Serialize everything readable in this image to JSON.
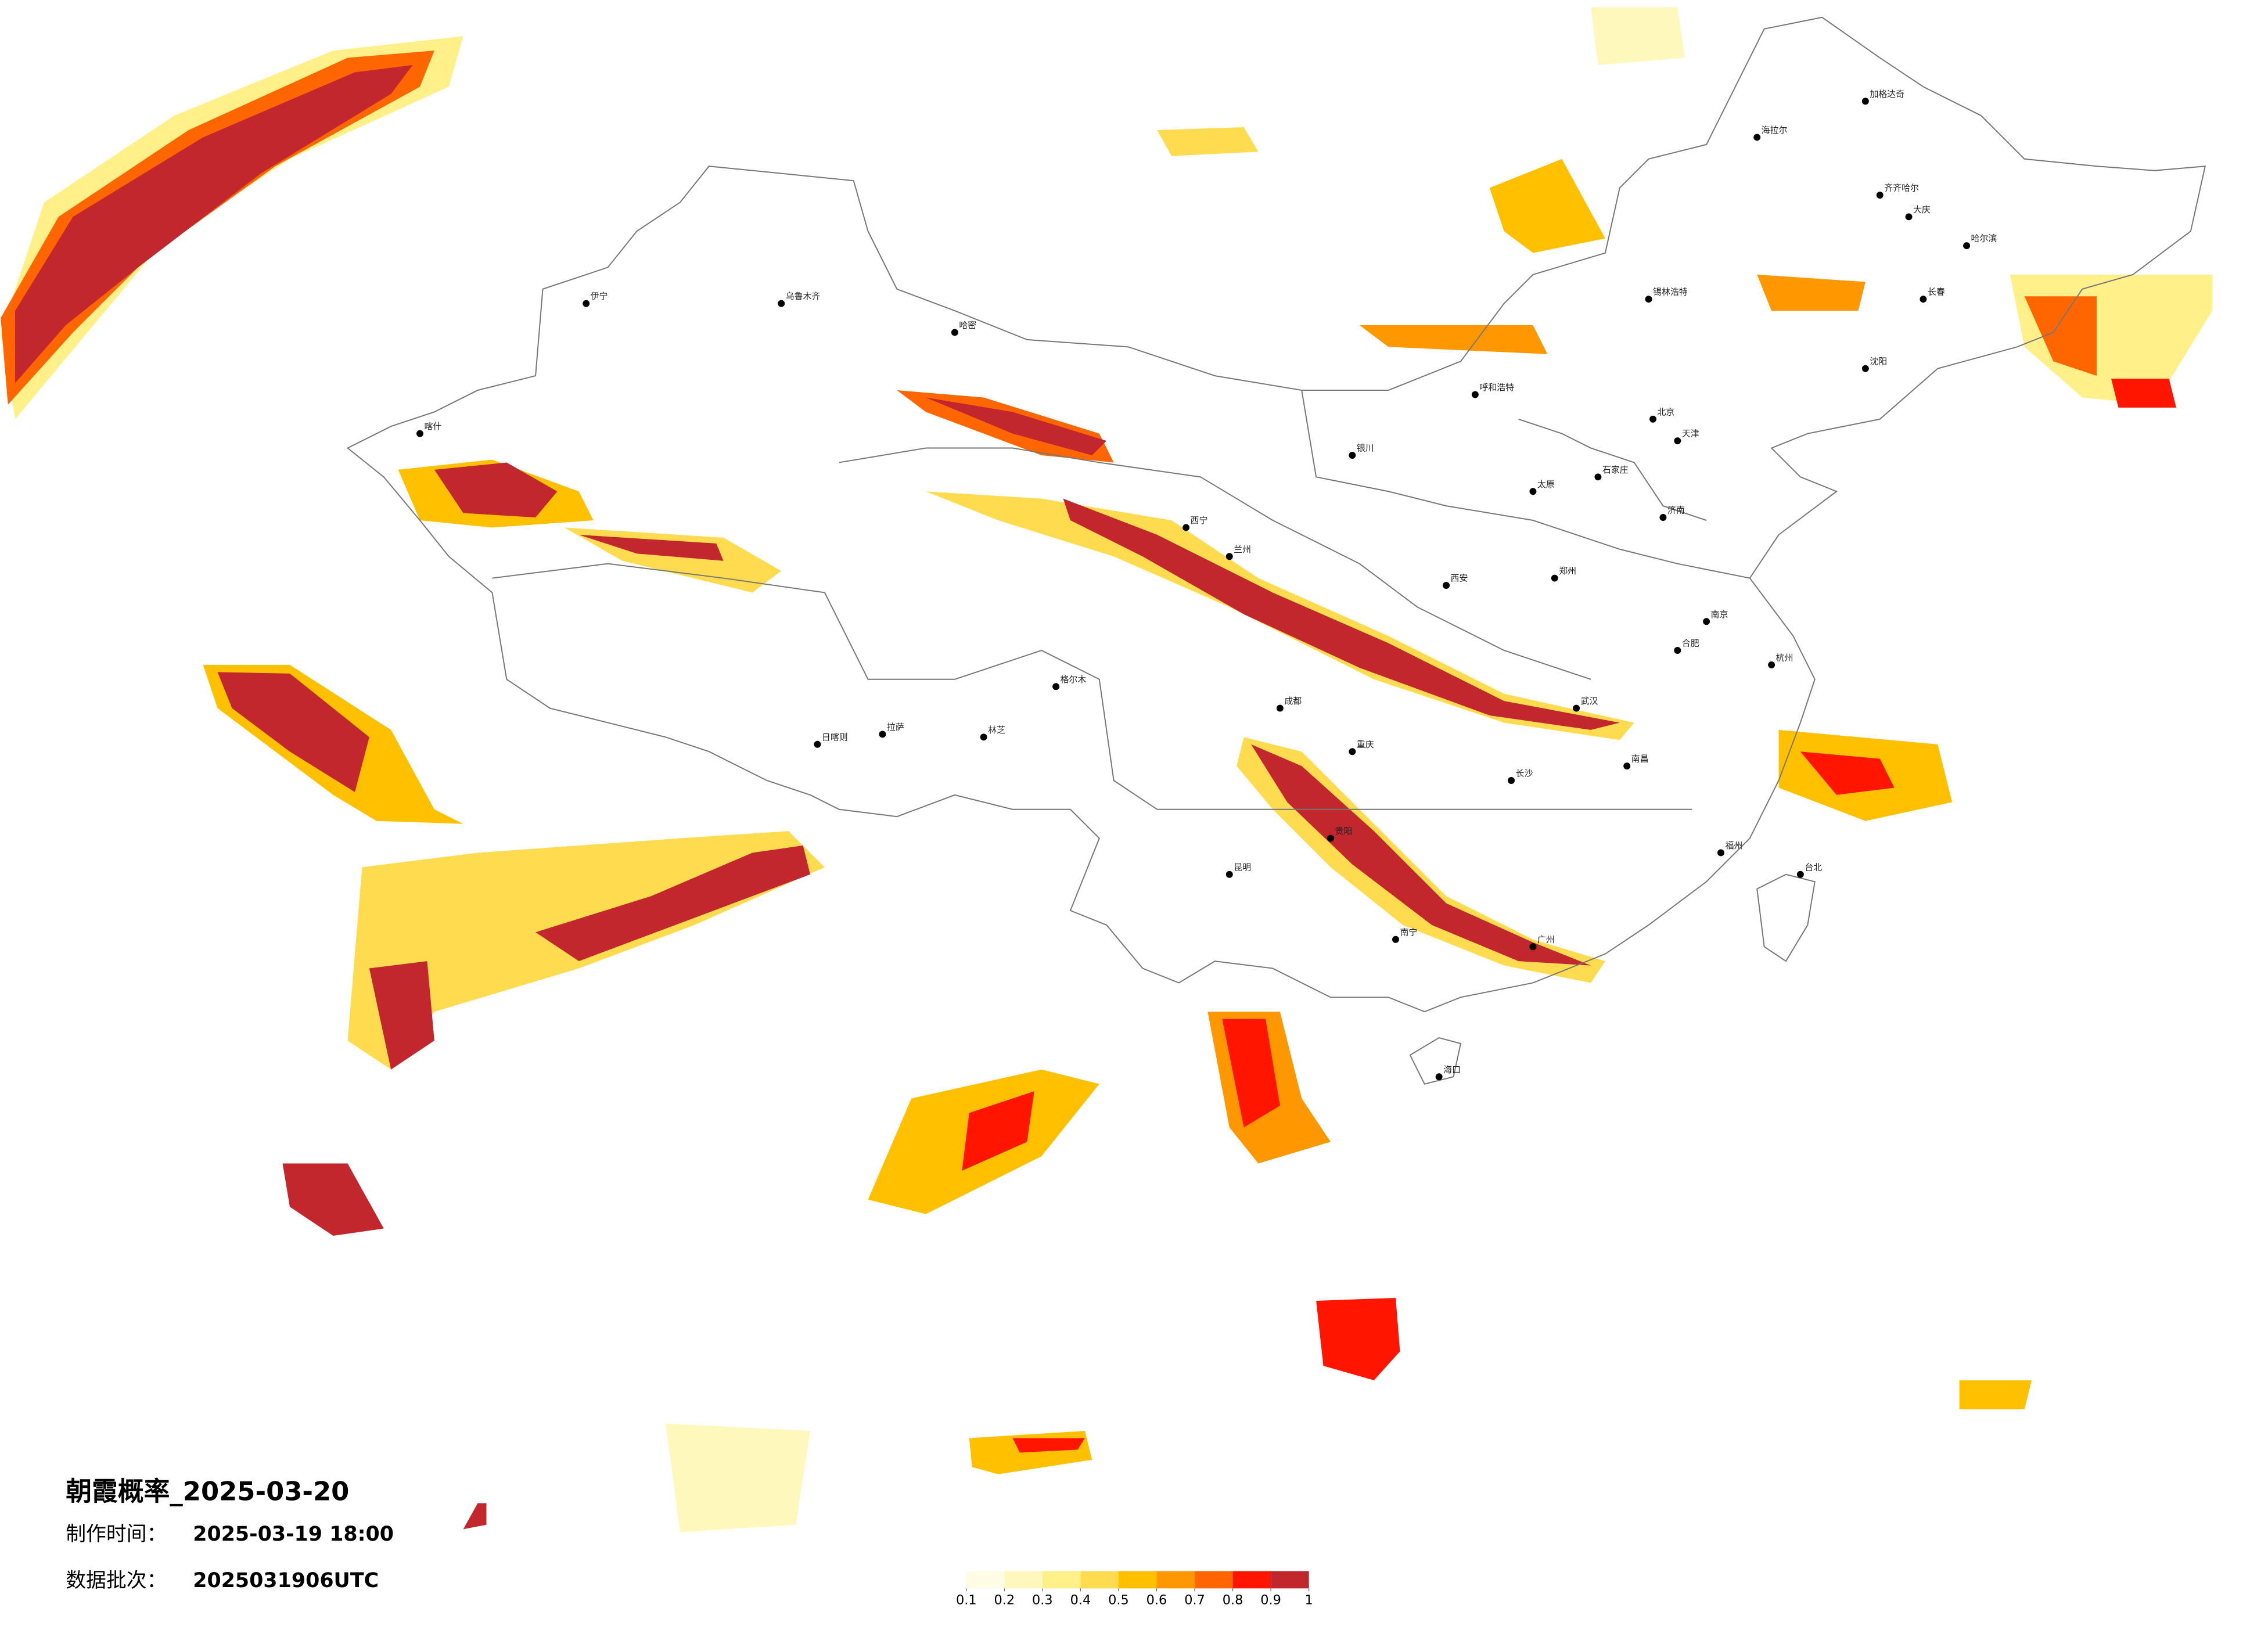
{
  "title": "朝霞概率_2025-03-20",
  "info": [
    {
      "label": "制作时间：",
      "value": "2025-03-19 18:00"
    },
    {
      "label": "数据批次：",
      "value": "2025031906UTC"
    }
  ],
  "legend": {
    "colors": [
      "#fffce6",
      "#fff8bd",
      "#fff08a",
      "#ffdc4f",
      "#ffc000",
      "#ff9800",
      "#ff6600",
      "#ff1500",
      "#c1272d"
    ],
    "ticks": [
      0.1,
      0.2,
      0.3,
      0.4,
      0.5,
      0.6,
      0.7,
      0.8,
      0.9,
      1
    ]
  },
  "cities": [
    "哈尔滨",
    "长春",
    "沈阳",
    "呼和浩特",
    "石家庄",
    "太原",
    "济南",
    "郑州",
    "西安",
    "兰州",
    "西宁",
    "银川",
    "乌鲁木齐",
    "拉萨",
    "成都",
    "重庆",
    "贵阳",
    "昆明",
    "南宁",
    "广州",
    "长沙",
    "武汉",
    "南昌",
    "福州",
    "杭州",
    "南京",
    "合肥",
    "台北",
    "海口",
    "喀什",
    "伊宁",
    "哈密",
    "格尔木",
    "日喀则",
    "林芝",
    "大庆",
    "齐齐哈尔",
    "加格达奇",
    "海拉尔",
    "锡林浩特",
    "北京",
    "天津"
  ]
}
